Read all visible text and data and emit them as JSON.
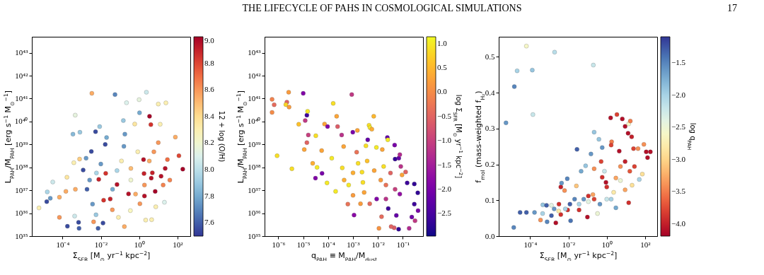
{
  "chart_data": [
    {
      "type": "scatter",
      "marker": "circle",
      "log": "xy",
      "annotations": [
        "THE LIFECYCLE OF PAHS IN COSMOLOGICAL SIMULATIONS",
        "17"
      ],
      "xlabel": "Σ$_{SFR}$ [M$_{⊙}$ yr$^{−1}$ kpc$^{−2}$]",
      "ylabel": "L$_{PAH}$/M$_{PAH}$ [erg s$^{−1}$ M$_{⊙}$$^{−1}$]",
      "clabel": "12 + log (O/H)",
      "xlim": [
        2.5e-06,
        470
      ],
      "ylim": [
        1e+35,
        5e+43
      ],
      "xticks": [
        {
          "value": 0.0001,
          "label": "10⁻⁴"
        },
        {
          "value": 0.01,
          "label": "10⁻²"
        },
        {
          "value": 1,
          "label": "10⁰"
        },
        {
          "value": 100,
          "label": "10²"
        }
      ],
      "yticks": [
        {
          "value": 1e+35,
          "label": "10³⁵"
        },
        {
          "value": 1e+36,
          "label": "10³⁶"
        },
        {
          "value": 1e+37,
          "label": "10³⁷"
        },
        {
          "value": 1e+38,
          "label": "10³⁸"
        },
        {
          "value": 1e+39,
          "label": "10³⁹"
        },
        {
          "value": 1e+40,
          "label": "10⁴⁰"
        },
        {
          "value": 1e+41,
          "label": "10⁴¹"
        },
        {
          "value": 1e+42,
          "label": "10⁴²"
        },
        {
          "value": 1e+43,
          "label": "10⁴³"
        }
      ],
      "clim": [
        7.5,
        9.0
      ],
      "cticks": [
        7.6,
        7.8,
        {
          "value": 8.0,
          "label": "8.0"
        },
        8.2,
        8.4,
        8.6,
        8.8,
        {
          "value": 9.0,
          "label": "9.0"
        }
      ],
      "x": [
        5.9e-06,
        1.5e-05,
        1.6e-05,
        2.3e-05,
        3.1e-05,
        6.9e-05,
        6.9e-05,
        0.00015,
        0.00017,
        0.00018,
        0.00035,
        0.00039,
        0.00046,
        0.00047,
        0.00043,
        0.00069,
        0.00073,
        0.00081,
        0.00078,
        0.0012,
        0.0019,
        0.0017,
        0.0032,
        0.0034,
        0.0037,
        0.0042,
        0.0053,
        0.0056,
        0.0072,
        0.0078,
        0.0087,
        0.01,
        0.013,
        0.014,
        0.017,
        0.018,
        0.02,
        0.031,
        0.04,
        0.055,
        0.07,
        0.083,
        0.15,
        0.18,
        0.16,
        0.17,
        0.28,
        0.35,
        0.22,
        0.59,
        1,
        1.05,
        1.9,
        1.8,
        1.7,
        2.4,
        3.5,
        4.1,
        4.3,
        4.9,
        6.9,
        10,
        14,
        12.6,
        23,
        25,
        30,
        78,
        120,
        190,
        21,
        7.4,
        2.2,
        4.5,
        1.1,
        0.65,
        0.37,
        5.9,
        10,
        0.37,
        0.12,
        0.07,
        0.041,
        0.0059,
        0.0026,
        18,
        1.9,
        3.4,
        0.85,
        40
      ],
      "values": [
        1.7e+36,
        3.2e+36,
        8.5e+36,
        4.5e+36,
        2.3e+37,
        5e+36,
        6.6e+35,
        9e+36,
        3.7e+37,
        2.7e+35,
        2.8e+39,
        1.6e+38,
        1.9e+40,
        1.1e+37,
        7.5e+35,
        4e+35,
        2.2e+35,
        3.4e+39,
        2.3e+38,
        7.6e+37,
        1.1e+37,
        2.5e+38,
        4.9e+38,
        1.7e+41,
        2.5e+36,
        4.2e+35,
        3.6e+39,
        8.5e+35,
        2.2e+35,
        3e+37,
        6e+39,
        1.4e+38,
        3.7e+35,
        3.7e+36,
        1e+39,
        5.5e+37,
        2e+39,
        4.2e+36,
        1.4e+36,
        1.5e+41,
        1.8e+37,
        6.6e+35,
        1.1e+40,
        2.8e+39,
        8.3e+38,
        2.6e+35,
        7e+36,
        1.3e+36,
        6.6e+40,
        7.8e+39,
        9e+40,
        2.4e+40,
        5.6e+36,
        5.4e+37,
        2.2e+38,
        1.9e+41,
        1.7e+40,
        7.3e+39,
        3.4e+37,
        5.8e+37,
        8.9e+36,
        5.8e+40,
        4.1e+37,
        7.6e+39,
        9e+37,
        6.5e+40,
        2.2e+38,
        2.1e+39,
        3.2e+38,
        8.3e+37,
        3e+36,
        1.9e+36,
        5e+35,
        5.2e+35,
        2.6e+36,
        6.8e+36,
        2.8e+37,
        4.8e+38,
        1.2e+39,
        9e+37,
        1.9e+38,
        7.2e+37,
        1.1e+37,
        5.7e+37,
        2.8e+37,
        1.7e+37,
        1.7e+37,
        1.9e+38,
        4.8e+38,
        2.8e+37
      ],
      "cvalues": [
        8.3,
        7.55,
        7.95,
        7.75,
        8.05,
        8.55,
        8.6,
        8.55,
        8.35,
        7.55,
        7.85,
        8.3,
        8.15,
        8.55,
        8.05,
        7.55,
        7.6,
        7.9,
        8.45,
        7.55,
        7.6,
        7.75,
        7.55,
        8.55,
        7.75,
        8.6,
        7.55,
        7.9,
        7.6,
        8.9,
        7.9,
        7.75,
        7.55,
        8.85,
        7.55,
        8.85,
        7.8,
        8.9,
        8.6,
        7.7,
        8.95,
        8.3,
        7.9,
        7.75,
        7.75,
        8.55,
        8.95,
        8.25,
        8.1,
        8.35,
        8.15,
        7.8,
        8.95,
        8.9,
        8.95,
        8.05,
        9.0,
        8.85,
        8.95,
        8.9,
        9.0,
        8.3,
        8.95,
        8.3,
        8.95,
        8.3,
        8.7,
        8.55,
        8.8,
        9.0,
        8.1,
        8.3,
        8.3,
        8.3,
        8.6,
        8.55,
        8.2,
        8.6,
        8.6,
        8.5,
        8.3,
        7.95,
        7.8,
        7.95,
        7.75,
        8.65,
        8.6,
        8.55,
        8.3,
        8.65
      ]
    },
    {
      "type": "scatter",
      "marker": "circle",
      "log": "xy",
      "xlabel": "q$_{PAH}$ ≡ M$_{PAH}$/M$_{dust}$",
      "ylabel": "L$_{PAH}$/M$_{PAH}$ [erg s$^{−1}$ M$_{⊙}$$^{−1}$]",
      "clabel": "log Σ$_{SFR}$ [M$_{⊙}$ yr$^{−1}$ kpc$^{−2}$]",
      "xlim": [
        2.8e-07,
        0.65
      ],
      "ylim": [
        1e+35,
        5e+43
      ],
      "xticks": [
        {
          "value": 1e-06,
          "label": "10⁻⁶"
        },
        {
          "value": 1e-05,
          "label": "10⁻⁵"
        },
        {
          "value": 0.0001,
          "label": "10⁻⁴"
        },
        {
          "value": 0.001,
          "label": "10⁻³"
        },
        {
          "value": 0.01,
          "label": "10⁻²"
        },
        {
          "value": 0.1,
          "label": "10⁻¹"
        }
      ],
      "yticks": [
        {
          "value": 1e+35,
          "label": "10³⁵"
        },
        {
          "value": 1e+36,
          "label": "10³⁶"
        },
        {
          "value": 1e+37,
          "label": "10³⁷"
        },
        {
          "value": 1e+38,
          "label": "10³⁸"
        },
        {
          "value": 1e+39,
          "label": "10³⁹"
        },
        {
          "value": 1e+40,
          "label": "10⁴⁰"
        },
        {
          "value": 1e+41,
          "label": "10⁴¹"
        },
        {
          "value": 1e+42,
          "label": "10⁴²"
        },
        {
          "value": 1e+43,
          "label": "10⁴³"
        }
      ],
      "clim": [
        -2.96,
        1.14
      ],
      "cticks": [
        {
          "value": -2.5,
          "label": "−2.5"
        },
        {
          "value": -2.0,
          "label": "−2.0"
        },
        {
          "value": -1.5,
          "label": "−1.5"
        },
        {
          "value": -1.0,
          "label": "−1.0"
        },
        {
          "value": -0.5,
          "label": "−0.5"
        },
        {
          "value": 0,
          "label": "0.0"
        },
        0.5,
        {
          "value": 1.0,
          "label": "1.0"
        }
      ],
      "x": [
        5.6e-07,
        6.8e-07,
        5.6e-07,
        8.9e-07,
        2.2e-06,
        2e-06,
        2.6e-06,
        2.7e-06,
        3.5e-06,
        6.6e-06,
        1e-05,
        1.2e-05,
        1.4e-05,
        1.5e-05,
        1.6e-05,
        1.4e-05,
        1.1e-05,
        3.2e-05,
        3.1e-05,
        3.6e-05,
        2.4e-05,
        5.7e-05,
        5.5e-05,
        7.2e-05,
        9.5e-05,
        9e-05,
        0.00016,
        0.00022,
        0.00024,
        0.00014,
        0.0002,
        0.00035,
        0.00042,
        0.00037,
        0.00062,
        0.00089,
        0.00098,
        0.0011,
        0.0015,
        0.0014,
        0.0023,
        0.0028,
        0.0044,
        0.0048,
        0.0057,
        0.0068,
        0.0039,
        0.0033,
        0.0087,
        0.011,
        0.014,
        0.024,
        0.025,
        0.015,
        0.047,
        0.049,
        0.069,
        0.076,
        0.083,
        0.13,
        0.093,
        0.15,
        0.29,
        0.4,
        0.41,
        0.29,
        0.31,
        0.23,
        0.18,
        0.068,
        0.045,
        0.034,
        0.055,
        0.026,
        0.021,
        0.0089,
        0.0047,
        0.002,
        0.001,
        0.00067,
        0.00044,
        0.0016,
        0.0037,
        0.0071,
        0.013,
        0.021,
        0.032,
        0.049,
        0.076,
        0.017,
        0.001,
        0.0025
      ],
      "values": [
        9.3e+40,
        5.4e+40,
        2.5e+40,
        3.2e+38,
        7e+40,
        5.5e+40,
        1.9e+41,
        4.3e+40,
        8.7e+37,
        7.6e+39,
        1.7e+41,
        1.1e+40,
        1.9e+40,
        2.8e+40,
        2.6e+39,
        1.2e+39,
        6e+38,
        2.4e+39,
        3.4e+37,
        1e+38,
        1.5e+38,
        5.5e+37,
        5.4e+38,
        7.8e+39,
        6e+39,
        2.1e+37,
        6.2e+40,
        1.7e+40,
        6e+39,
        2.5e+38,
        9e+36,
        2.6e+39,
        8.1e+38,
        9.5e+37,
        2.5e+36,
        1.5e+41,
        3.4e+39,
        8.3e+35,
        4.1e+39,
        4.6e+38,
        6.2e+37,
        8.1e+36,
        6.9e+39,
        5.4e+39,
        4.6e+39,
        1.7e+40,
        1.6e+39,
        8.7e+38,
        7.4e+38,
        2.2e+35,
        7e+35,
        2e+39,
        1.6e+39,
        6e+38,
        9.4e+38,
        2.3e+38,
        2.5e+38,
        3.6e+38,
        1.1e+38,
        6.3e+37,
        4.7e+37,
        2.1e+37,
        1.9e+37,
        7.8e+36,
        1.3e+36,
        2.5e+36,
        4.7e+35,
        6.8e+35,
        2.2e+35,
        2e+35,
        2.3e+35,
        2.6e+35,
        8e+35,
        1.6e+36,
        4.2e+36,
        4.2e+36,
        2.6e+36,
        2.6e+36,
        6e+36,
        1.7e+37,
        2.8e+37,
        1.5e+38,
        1.9e+38,
        7.2e+37,
        2.8e+37,
        1.7e+37,
        5.7e+37,
        1.1e+37,
        6.8e+36,
        1.1e+38,
        5.8e+37,
        2.2e+37
      ],
      "cvalues": [
        -0.1,
        -0.4,
        0.0,
        0.9,
        -0.5,
        0.8,
        0.2,
        0.2,
        0.9,
        0.6,
        -1.9,
        -1.1,
        -2.6,
        1.0,
        -1.0,
        -0.5,
        0.3,
        0.9,
        -1.9,
        1.0,
        0.4,
        -2.0,
        0.3,
        0.3,
        -1.9,
        1.0,
        0.9,
        0.3,
        -0.6,
        1.0,
        1.0,
        -1.2,
        0.3,
        0.9,
        -0.3,
        -1.1,
        -2.0,
        -1.8,
        0.3,
        -0.3,
        0.9,
        0.3,
        0.9,
        1.0,
        0.4,
        0.5,
        -2.2,
        0.9,
        1.0,
        0.1,
        -0.4,
        -2.2,
        1.0,
        0.3,
        -2.0,
        -2.7,
        -2.2,
        -1.3,
        -1.2,
        -0.5,
        0.3,
        -2.6,
        -2.7,
        -2.7,
        -2.0,
        -2.6,
        -1.1,
        -2.1,
        -1.3,
        -2.7,
        -0.6,
        -0.5,
        -2.2,
        -2.6,
        -1.2,
        -1.9,
        -0.4,
        0.2,
        0.2,
        1.0,
        0.4,
        0.9,
        0.6,
        0.3,
        0.2,
        -0.3,
        -0.5,
        -1.0,
        -1.7,
        0.9,
        0.4,
        0.9
      ]
    },
    {
      "type": "scatter",
      "marker": "circle",
      "log": "x",
      "xlabel": "Σ$_{SFR}$ [M$_{⊙}$ yr$^{−1}$ kpc$^{−2}$]",
      "ylabel": "f$_{mol}$ (mass-weighted f$_{H₂}$)",
      "clabel": "log q$_{PAH}$",
      "xlim": [
        2.3e-06,
        430
      ],
      "ylim": [
        0,
        0.556
      ],
      "xticks": [
        {
          "value": 0.0001,
          "label": "10⁻⁴"
        },
        {
          "value": 0.01,
          "label": "10⁻²"
        },
        {
          "value": 1,
          "label": "10⁰"
        },
        {
          "value": 100,
          "label": "10²"
        }
      ],
      "yticks": [
        {
          "value": 0,
          "label": "0.0"
        },
        0.1,
        0.2,
        0.3,
        0.4,
        0.5
      ],
      "clim": [
        -4.19,
        -1.09
      ],
      "cticks": [
        {
          "value": -4.0,
          "label": "−4.0"
        },
        {
          "value": -3.5,
          "label": "−3.5"
        },
        {
          "value": -3.0,
          "label": "−3.0"
        },
        {
          "value": -2.5,
          "label": "−2.5"
        },
        {
          "value": -2.0,
          "label": "−2.0"
        },
        {
          "value": -1.5,
          "label": "−1.5"
        }
      ],
      "x": [
        5.5e-06,
        1.4e-05,
        1.5e-05,
        2.1e-05,
        3e-05,
        6.4e-05,
        6.4e-05,
        0.00013,
        0.00014,
        0.00017,
        0.00046,
        0.00035,
        0.00072,
        0.00077,
        0.0019,
        0.0022,
        0.0032,
        0.004,
        0.0044,
        0.0063,
        0.004,
        0.0087,
        0.0091,
        0.013,
        0.028,
        0.026,
        0.036,
        0.046,
        0.079,
        0.098,
        0.11,
        0.15,
        0.22,
        0.2,
        0.22,
        0.22,
        0.39,
        0.51,
        0.58,
        0.58,
        0.91,
        1,
        1.6,
        1.8,
        1.7,
        3.4,
        3,
        4.5,
        6.5,
        9.1,
        14,
        17,
        13,
        20,
        14,
        25,
        28,
        43,
        50,
        72,
        87,
        115,
        135,
        190,
        16,
        9.1,
        5.2,
        3,
        2.3,
        1,
        0.44,
        0.19,
        0.11,
        0.063,
        0.036,
        0.021,
        0.012,
        0.0069,
        0.0031,
        0.0018,
        0.0013,
        0.00045,
        0.0013,
        5.2,
        9.1,
        21,
        0.76,
        1.7,
        0.33
      ],
      "values": [
        0.316,
        0.024,
        0.417,
        0.461,
        0.066,
        0.53,
        0.066,
        0.463,
        0.339,
        0.066,
        0.087,
        0.045,
        0.086,
        0.04,
        0.513,
        0.037,
        0.089,
        0.137,
        0.148,
        0.127,
        0.06,
        0.16,
        0.073,
        0.043,
        0.242,
        0.14,
        0.073,
        0.181,
        0.196,
        0.053,
        0.112,
        0.229,
        0.29,
        0.477,
        0.188,
        0.103,
        0.27,
        0.208,
        0.247,
        0.164,
        0.15,
        0.137,
        0.33,
        0.263,
        0.254,
        0.339,
        0.079,
        0.237,
        0.327,
        0.306,
        0.313,
        0.321,
        0.287,
        0.277,
        0.093,
        0.244,
        0.194,
        0.244,
        0.158,
        0.173,
        0.256,
        0.235,
        0.219,
        0.235,
        0.181,
        0.208,
        0.194,
        0.162,
        0.122,
        0.103,
        0.089,
        0.116,
        0.096,
        0.103,
        0.089,
        0.103,
        0.089,
        0.076,
        0.07,
        0.076,
        0.057,
        0.063,
        0.086,
        0.155,
        0.129,
        0.142,
        0.181,
        0.103,
        0.063
      ],
      "cvalues": [
        -1.6,
        -1.5,
        -1.5,
        -2.0,
        -1.3,
        -2.6,
        -1.3,
        -1.9,
        -2.2,
        -1.6,
        -1.9,
        -3.4,
        -1.3,
        -1.5,
        -2.1,
        -4.1,
        -3.9,
        -4.0,
        -1.6,
        -3.4,
        -3.9,
        -1.5,
        -3.9,
        -1.4,
        -1.3,
        -3.1,
        -3.9,
        -1.7,
        -1.9,
        -4.1,
        -3.9,
        -1.6,
        -1.9,
        -2.2,
        -3.4,
        -3.8,
        -1.9,
        -3.8,
        -1.6,
        -3.9,
        -4.1,
        -3.9,
        -4.1,
        -3.5,
        -3.8,
        -3.8,
        -1.7,
        -4.1,
        -4.1,
        -4.1,
        -2.6,
        -3.5,
        -4.1,
        -4.0,
        -3.9,
        -3.8,
        -3.8,
        -3.4,
        -2.0,
        -2.9,
        -3.4,
        -4.1,
        -4.1,
        -4.1,
        -3.7,
        -4.0,
        -3.4,
        -3.3,
        -2.8,
        -2.2,
        -1.6,
        -3.3,
        -2.4,
        -1.6,
        -2.0,
        -1.5,
        -1.3,
        -2.0,
        -2.8,
        -1.6,
        -1.3,
        -2.0,
        -2.4,
        -2.5,
        -3.3,
        -2.9,
        -2.2,
        -2.0,
        -2.5
      ]
    }
  ]
}
